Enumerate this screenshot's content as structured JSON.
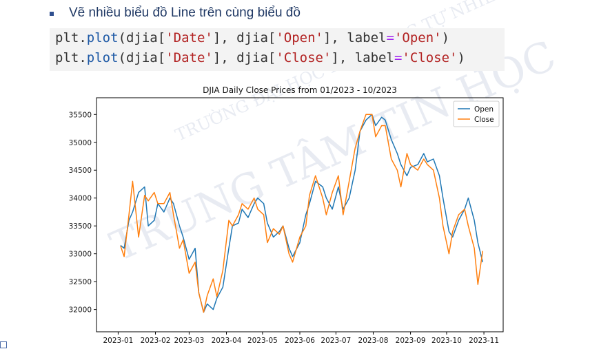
{
  "slide": {
    "bullet_text": "Vẽ nhiều biểu đồ Line trên cùng biểu đồ",
    "code_lines": [
      [
        "plt",
        ".",
        "plot",
        "(djia[",
        "'Date'",
        "], djia[",
        "'Open'",
        "], label",
        "=",
        "'Open'",
        ")"
      ],
      [
        "plt",
        ".",
        "plot",
        "(djia[",
        "'Date'",
        "], djia[",
        "'Close'",
        "], label",
        "=",
        "'Close'",
        ")"
      ]
    ],
    "watermark_lines": [
      "TRƯỜNG ĐẠI HỌC KHOA HỌC TỰ NHIÊN",
      "TRUNG TÂM TIN HỌC"
    ],
    "colors": {
      "bullet": "#2f4f8f",
      "bullet_text": "#1f3864",
      "code_bg": "#f3f3f3",
      "code_keyword": "#1f5aa6",
      "code_string": "#b22222",
      "code_operator": "#a020f0"
    }
  },
  "chart_data": {
    "type": "line",
    "title": "DJIA Daily Close Prices from 01/2023 - 10/2023",
    "xlabel": "",
    "ylabel": "",
    "x_ticks": [
      "2023-01",
      "2023-02",
      "2023-03",
      "2023-04",
      "2023-05",
      "2023-06",
      "2023-07",
      "2023-08",
      "2023-09",
      "2023-10",
      "2023-11"
    ],
    "y_ticks": [
      32000,
      32500,
      33000,
      33500,
      34000,
      34500,
      35000,
      35500
    ],
    "xlim": [
      "2022-12-14",
      "2023-11-17"
    ],
    "ylim": [
      31600,
      35800
    ],
    "legend": "top-right",
    "grid": false,
    "series": [
      {
        "name": "Open",
        "color": "#1f77b4",
        "x": [
          "2023-01-03",
          "2023-01-06",
          "2023-01-10",
          "2023-01-13",
          "2023-01-18",
          "2023-01-23",
          "2023-01-26",
          "2023-01-31",
          "2023-02-03",
          "2023-02-08",
          "2023-02-13",
          "2023-02-16",
          "2023-02-21",
          "2023-02-24",
          "2023-03-01",
          "2023-03-06",
          "2023-03-09",
          "2023-03-13",
          "2023-03-16",
          "2023-03-21",
          "2023-03-24",
          "2023-03-29",
          "2023-04-03",
          "2023-04-06",
          "2023-04-11",
          "2023-04-14",
          "2023-04-19",
          "2023-04-24",
          "2023-04-27",
          "2023-05-02",
          "2023-05-05",
          "2023-05-10",
          "2023-05-15",
          "2023-05-18",
          "2023-05-23",
          "2023-05-26",
          "2023-06-01",
          "2023-06-06",
          "2023-06-09",
          "2023-06-14",
          "2023-06-20",
          "2023-06-23",
          "2023-06-28",
          "2023-07-03",
          "2023-07-07",
          "2023-07-12",
          "2023-07-17",
          "2023-07-21",
          "2023-07-26",
          "2023-07-31",
          "2023-08-03",
          "2023-08-08",
          "2023-08-11",
          "2023-08-16",
          "2023-08-21",
          "2023-08-24",
          "2023-08-29",
          "2023-09-01",
          "2023-09-07",
          "2023-09-12",
          "2023-09-15",
          "2023-09-20",
          "2023-09-25",
          "2023-09-28",
          "2023-10-03",
          "2023-10-06",
          "2023-10-11",
          "2023-10-16",
          "2023-10-19",
          "2023-10-24",
          "2023-10-27",
          "2023-10-31"
        ],
        "y": [
          33150,
          33100,
          33600,
          33750,
          34100,
          34200,
          33500,
          33600,
          33900,
          33750,
          34000,
          33900,
          33500,
          33300,
          32900,
          33100,
          32300,
          31950,
          32100,
          32000,
          32200,
          32400,
          33100,
          33500,
          33550,
          33800,
          33650,
          33900,
          34000,
          33900,
          33550,
          33300,
          33400,
          33500,
          33100,
          32950,
          33200,
          33700,
          33900,
          34300,
          34200,
          34000,
          33800,
          34200,
          33800,
          34000,
          34500,
          35200,
          35400,
          35500,
          35300,
          35450,
          35400,
          35050,
          34800,
          34600,
          34400,
          34550,
          34600,
          34800,
          34650,
          34700,
          34400,
          34000,
          33400,
          33300,
          33600,
          33800,
          34000,
          33600,
          33200,
          32850
        ]
      },
      {
        "name": "Close",
        "color": "#ff7f0e",
        "x": [
          "2023-01-03",
          "2023-01-06",
          "2023-01-10",
          "2023-01-13",
          "2023-01-18",
          "2023-01-23",
          "2023-01-26",
          "2023-01-31",
          "2023-02-03",
          "2023-02-08",
          "2023-02-13",
          "2023-02-16",
          "2023-02-21",
          "2023-02-24",
          "2023-03-01",
          "2023-03-06",
          "2023-03-09",
          "2023-03-13",
          "2023-03-16",
          "2023-03-21",
          "2023-03-24",
          "2023-03-29",
          "2023-04-03",
          "2023-04-06",
          "2023-04-11",
          "2023-04-14",
          "2023-04-19",
          "2023-04-24",
          "2023-04-27",
          "2023-05-02",
          "2023-05-05",
          "2023-05-10",
          "2023-05-15",
          "2023-05-18",
          "2023-05-23",
          "2023-05-26",
          "2023-06-01",
          "2023-06-06",
          "2023-06-09",
          "2023-06-14",
          "2023-06-20",
          "2023-06-23",
          "2023-06-28",
          "2023-07-03",
          "2023-07-07",
          "2023-07-12",
          "2023-07-17",
          "2023-07-21",
          "2023-07-26",
          "2023-07-31",
          "2023-08-03",
          "2023-08-08",
          "2023-08-11",
          "2023-08-16",
          "2023-08-21",
          "2023-08-24",
          "2023-08-29",
          "2023-09-01",
          "2023-09-07",
          "2023-09-12",
          "2023-09-15",
          "2023-09-20",
          "2023-09-25",
          "2023-09-28",
          "2023-10-03",
          "2023-10-06",
          "2023-10-11",
          "2023-10-16",
          "2023-10-19",
          "2023-10-24",
          "2023-10-27",
          "2023-10-31"
        ],
        "y": [
          33140,
          32950,
          33700,
          34300,
          33300,
          34050,
          33950,
          34100,
          33900,
          33900,
          34100,
          33700,
          33100,
          33250,
          32650,
          32850,
          32300,
          31950,
          32250,
          32550,
          32230,
          32700,
          33600,
          33500,
          33700,
          33900,
          33800,
          34000,
          33800,
          33700,
          33200,
          33450,
          33350,
          33500,
          33000,
          32850,
          33300,
          33500,
          34050,
          34400,
          34000,
          33700,
          34100,
          34400,
          33700,
          34300,
          34900,
          35200,
          35500,
          35500,
          35100,
          35300,
          35300,
          34700,
          34500,
          34200,
          34800,
          34600,
          34500,
          34700,
          34600,
          34500,
          34000,
          33500,
          33000,
          33400,
          33700,
          33800,
          33500,
          33100,
          32450,
          33050
        ]
      }
    ]
  }
}
